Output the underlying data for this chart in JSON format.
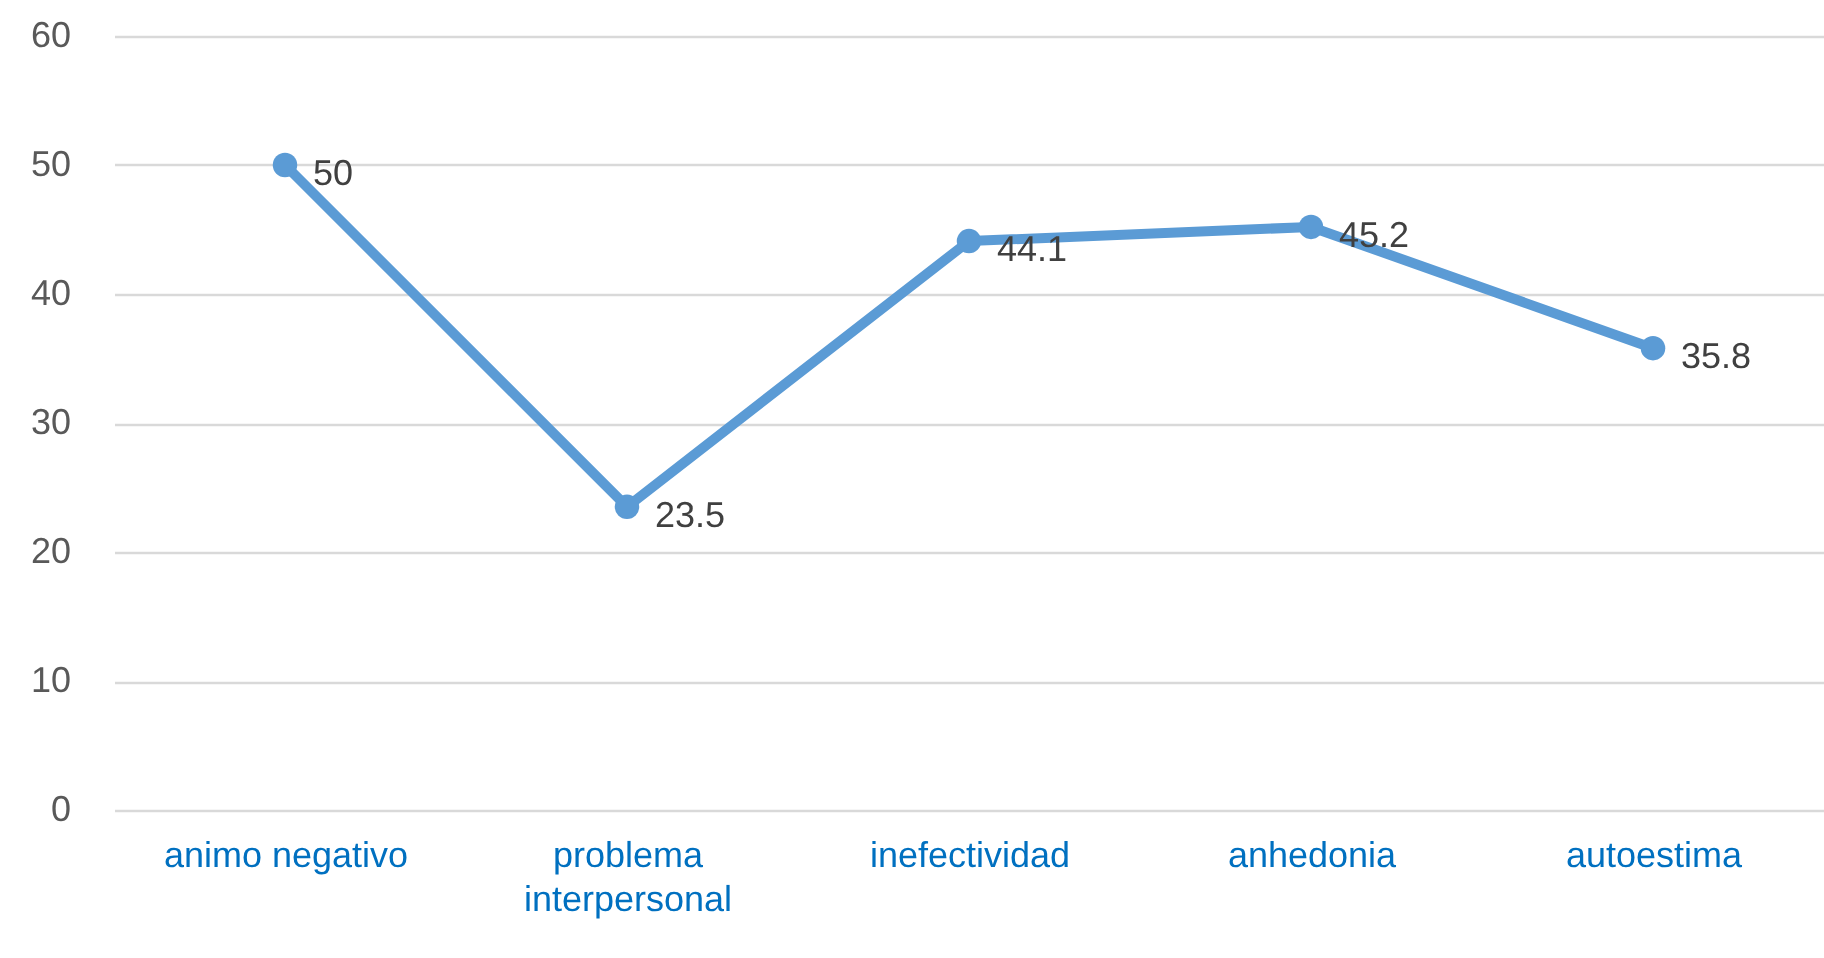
{
  "chart_data": {
    "type": "line",
    "categories": [
      "animo negativo",
      "problema interpersonal",
      "inefectividad",
      "anhedonia",
      "autoestima"
    ],
    "series": [
      {
        "color": "#5b9bd5",
        "values": [
          50,
          23.5,
          44.1,
          45.2,
          35.8
        ]
      }
    ],
    "ylim": [
      0,
      60
    ],
    "yticks": [
      0,
      10,
      20,
      30,
      40,
      50,
      60
    ],
    "grid": "y",
    "marker": "circle",
    "line_style": "solid",
    "data_labels": true
  }
}
